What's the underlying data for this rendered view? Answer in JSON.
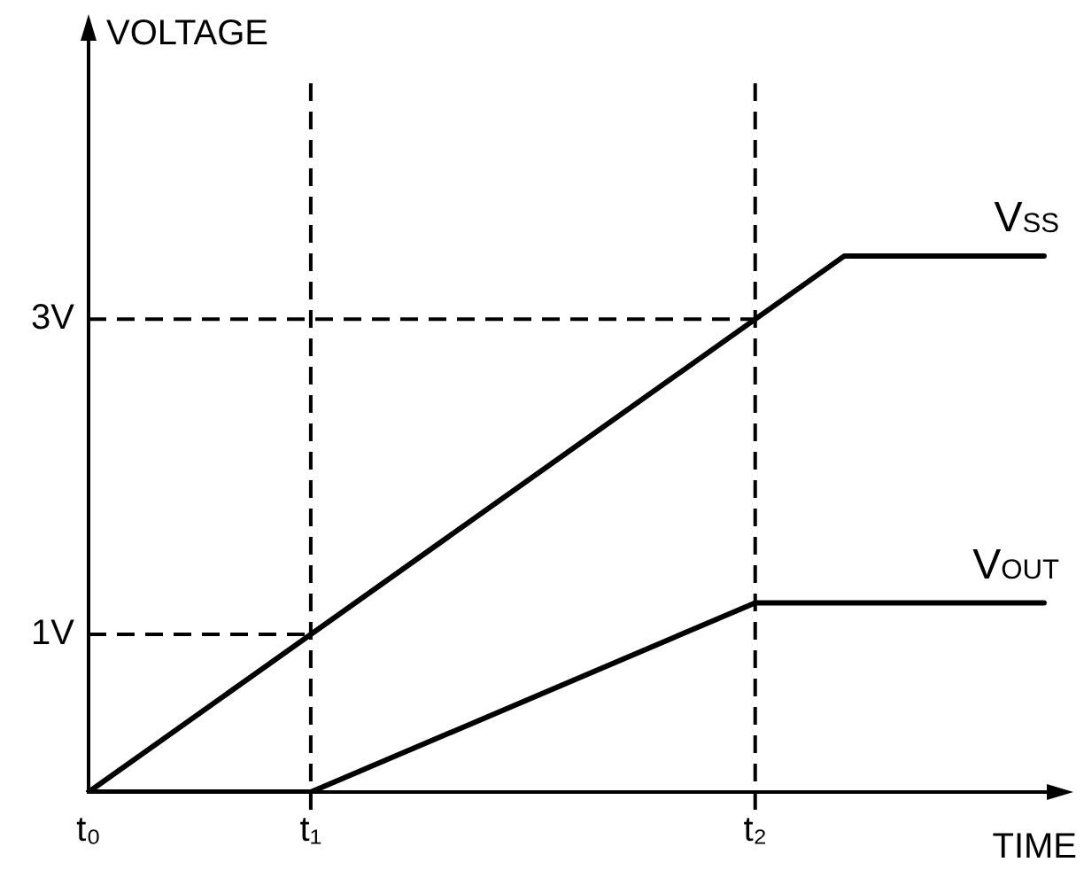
{
  "chart_data": {
    "type": "line",
    "xlabel": "TIME",
    "ylabel": "VOLTAGE",
    "categories": [
      "t₀",
      null,
      null,
      null,
      null,
      null,
      null,
      null,
      null,
      null,
      "t₁",
      null,
      null,
      null,
      null,
      null,
      null,
      null,
      null,
      null,
      null,
      null,
      null,
      null,
      null,
      null,
      null,
      null,
      null,
      null,
      "t₂",
      null,
      null,
      null,
      null,
      null,
      null,
      null,
      null,
      null,
      null,
      null,
      null,
      null,
      null
    ],
    "ylim": [
      0,
      4.8
    ],
    "yticks": [
      {
        "value": 1,
        "label": "1V"
      },
      {
        "value": 3,
        "label": "3V"
      }
    ],
    "series": [
      {
        "name": "V$_{SS}$",
        "color": "#000000",
        "values": [
          0,
          null,
          null,
          null,
          null,
          null,
          null,
          null,
          null,
          null,
          null,
          null,
          null,
          null,
          null,
          null,
          null,
          null,
          null,
          null,
          null,
          null,
          null,
          null,
          null,
          null,
          null,
          null,
          null,
          null,
          null,
          null,
          null,
          null,
          3.4,
          null,
          null,
          null,
          null,
          null,
          null,
          null,
          null,
          3.4,
          null
        ]
      },
      {
        "name": "V$_{OUT}$",
        "color": "#000000",
        "values": [
          0,
          null,
          null,
          null,
          null,
          null,
          null,
          null,
          null,
          null,
          0,
          null,
          null,
          null,
          null,
          null,
          null,
          null,
          null,
          null,
          null,
          null,
          null,
          null,
          null,
          null,
          null,
          null,
          null,
          null,
          1.2,
          null,
          null,
          null,
          null,
          null,
          null,
          null,
          null,
          null,
          null,
          null,
          null,
          1.2,
          null
        ]
      }
    ],
    "ref_lines": [
      {
        "axis": "x",
        "value": "t₁",
        "line_style": "dashed"
      },
      {
        "axis": "x",
        "value": "t₂",
        "line_style": "dashed"
      },
      {
        "axis": "y",
        "value": 1,
        "line_style": "dashed"
      },
      {
        "axis": "y",
        "value": 3,
        "line_style": "dashed"
      }
    ],
    "grid": false,
    "legend": false,
    "marker": "none",
    "line_style": "solid"
  }
}
